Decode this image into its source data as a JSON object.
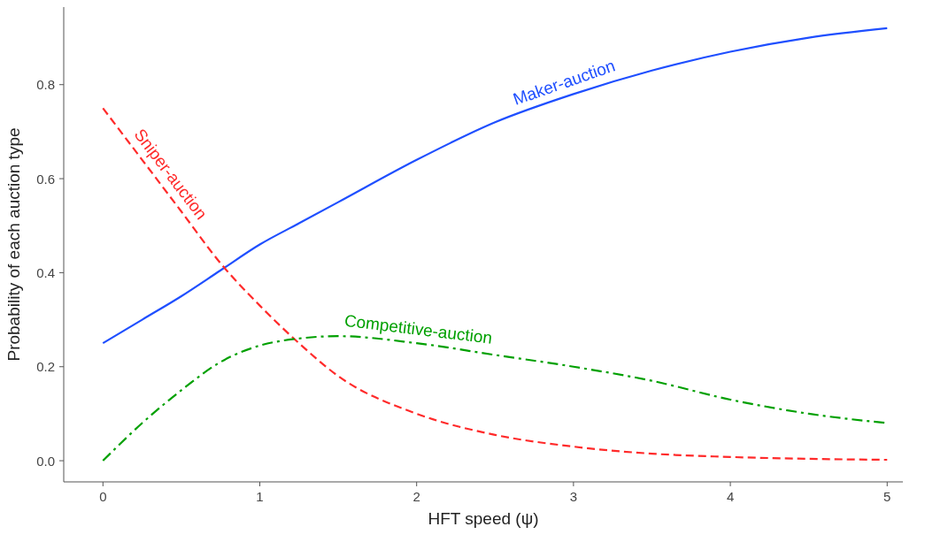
{
  "chart_data": {
    "type": "line",
    "xlabel": "HFT speed (ψ)",
    "ylabel": "Probability of each auction type",
    "xlim": [
      -0.25,
      5.1
    ],
    "ylim": [
      -0.045,
      0.965
    ],
    "xticks": [
      0,
      1,
      2,
      3,
      4,
      5
    ],
    "yticks": [
      {
        "value": 0,
        "label": "0.0"
      },
      0.2,
      0.4,
      0.6,
      0.8
    ],
    "grid": false,
    "marker": "none",
    "x": [
      0,
      0.25,
      0.5,
      0.75,
      1,
      1.25,
      1.5,
      2,
      2.5,
      3,
      3.5,
      4,
      4.5,
      5
    ],
    "series": [
      {
        "name": "Maker-auction",
        "color": "#1f4fff",
        "line_style": "solid",
        "values": [
          0.25,
          0.3,
          0.35,
          0.405,
          0.46,
          0.505,
          0.55,
          0.64,
          0.72,
          0.78,
          0.83,
          0.87,
          0.9,
          0.92
        ]
      },
      {
        "name": "Sniper-auction",
        "color": "#ff2a2a",
        "line_style": "dashed",
        "values": [
          0.75,
          0.64,
          0.53,
          0.42,
          0.33,
          0.25,
          0.18,
          0.1,
          0.055,
          0.03,
          0.015,
          0.008,
          0.004,
          0.002
        ]
      },
      {
        "name": "Competitive-auction",
        "color": "#00a000",
        "line_style": "dashdot",
        "values": [
          0,
          0.08,
          0.15,
          0.21,
          0.245,
          0.26,
          0.265,
          0.25,
          0.225,
          0.2,
          0.17,
          0.13,
          0.1,
          0.08
        ]
      }
    ]
  }
}
